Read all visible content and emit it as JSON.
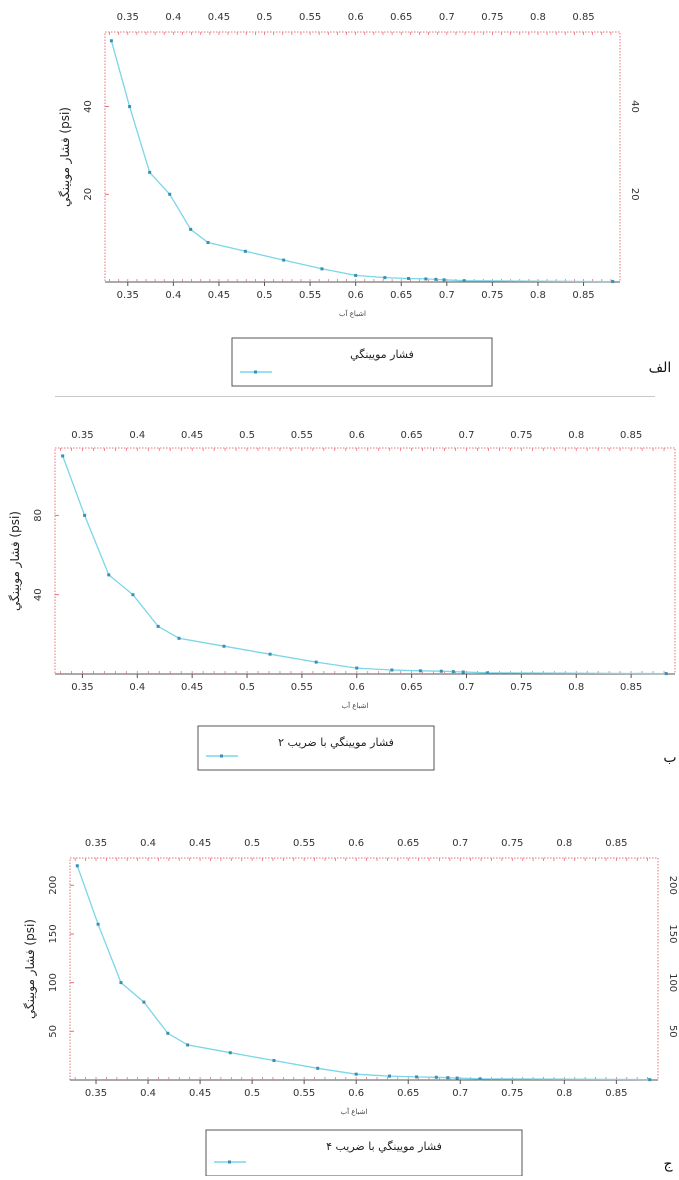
{
  "x_values": [
    0.332,
    0.352,
    0.374,
    0.396,
    0.419,
    0.438,
    0.479,
    0.521,
    0.563,
    0.6,
    0.632,
    0.658,
    0.677,
    0.688,
    0.697,
    0.719,
    0.882
  ],
  "panels": [
    {
      "label": "الف",
      "y_axis_label": "فشار مويينگي (psi)",
      "x_axis_label": "اشباع آب",
      "legend_label": "فشار مويينگي",
      "series_color": "#7ad6e8",
      "frame_color": "#e8707a"
    },
    {
      "label": "ب",
      "y_axis_label": "فشار مويينگي (psi)",
      "x_axis_label": "اشباع آب",
      "legend_label": "فشار مويينگي با ضريب ۲",
      "series_color": "#7ad6e8",
      "frame_color": "#e8707a"
    },
    {
      "label": "ج",
      "y_axis_label": "فشار مويينگي (psi)",
      "x_axis_label": "اشباع آب",
      "legend_label": "فشار مويينگي با ضريب ۴",
      "series_color": "#7ad6e8",
      "frame_color": "#e8707a"
    }
  ],
  "chart_data": [
    {
      "type": "line",
      "x": [
        0.332,
        0.352,
        0.374,
        0.396,
        0.419,
        0.438,
        0.479,
        0.521,
        0.563,
        0.6,
        0.632,
        0.658,
        0.677,
        0.688,
        0.697,
        0.719,
        0.882
      ],
      "series": [
        {
          "name": "فشار مويينگي",
          "values": [
            55,
            40,
            25,
            20,
            12,
            9,
            7,
            5,
            3,
            1.5,
            1.0,
            0.8,
            0.7,
            0.6,
            0.5,
            0.3,
            0.1
          ]
        }
      ],
      "xlim": [
        0.325,
        0.89
      ],
      "ylim": [
        0,
        57
      ],
      "x_ticks": [
        "0.35",
        "0.4",
        "0.45",
        "0.5",
        "0.55",
        "0.6",
        "0.65",
        "0.7",
        "0.75",
        "0.8",
        "0.85"
      ],
      "x_tick_values": [
        0.35,
        0.4,
        0.45,
        0.5,
        0.55,
        0.6,
        0.65,
        0.7,
        0.75,
        0.8,
        0.85
      ],
      "y_ticks_left": [
        "20",
        "40"
      ],
      "y_ticks_right": [
        "20",
        "40"
      ],
      "y_tick_values": [
        20,
        40
      ],
      "xlabel": "اشباع آب",
      "ylabel": "فشار مويينگي (psi)",
      "legend": "bottom-center"
    },
    {
      "type": "line",
      "x": [
        0.332,
        0.352,
        0.374,
        0.396,
        0.419,
        0.438,
        0.479,
        0.521,
        0.563,
        0.6,
        0.632,
        0.658,
        0.677,
        0.688,
        0.697,
        0.719,
        0.882
      ],
      "series": [
        {
          "name": "فشار مويينگي با ضريب ۲",
          "values": [
            110,
            80,
            50,
            40,
            24,
            18,
            14,
            10,
            6,
            3,
            2,
            1.6,
            1.4,
            1.2,
            1.0,
            0.6,
            0.2
          ]
        }
      ],
      "xlim": [
        0.325,
        0.89
      ],
      "ylim": [
        0,
        114
      ],
      "x_ticks": [
        "0.35",
        "0.4",
        "0.45",
        "0.5",
        "0.55",
        "0.6",
        "0.65",
        "0.7",
        "0.75",
        "0.8",
        "0.85"
      ],
      "x_tick_values": [
        0.35,
        0.4,
        0.45,
        0.5,
        0.55,
        0.6,
        0.65,
        0.7,
        0.75,
        0.8,
        0.85
      ],
      "y_ticks_left": [
        "40",
        "80"
      ],
      "y_ticks_right": [],
      "y_tick_values": [
        40,
        80
      ],
      "xlabel": "اشباع آب",
      "ylabel": "فشار مويينگي (psi)",
      "legend": "bottom-center"
    },
    {
      "type": "line",
      "x": [
        0.332,
        0.352,
        0.374,
        0.396,
        0.419,
        0.438,
        0.479,
        0.521,
        0.563,
        0.6,
        0.632,
        0.658,
        0.677,
        0.688,
        0.697,
        0.719,
        0.882
      ],
      "series": [
        {
          "name": "فشار مويينگي با ضريب ۴",
          "values": [
            220,
            160,
            100,
            80,
            48,
            36,
            28,
            20,
            12,
            6,
            4,
            3.2,
            2.8,
            2.4,
            2.0,
            1.2,
            0.4
          ]
        }
      ],
      "xlim": [
        0.325,
        0.89
      ],
      "ylim": [
        0,
        228
      ],
      "x_ticks": [
        "0.35",
        "0.4",
        "0.45",
        "0.5",
        "0.55",
        "0.6",
        "0.65",
        "0.7",
        "0.75",
        "0.8",
        "0.85"
      ],
      "x_tick_values": [
        0.35,
        0.4,
        0.45,
        0.5,
        0.55,
        0.6,
        0.65,
        0.7,
        0.75,
        0.8,
        0.85
      ],
      "y_ticks_left": [
        "50",
        "100",
        "150",
        "200"
      ],
      "y_ticks_right": [
        "50",
        "100",
        "150",
        "200"
      ],
      "y_tick_values": [
        50,
        100,
        150,
        200
      ],
      "xlabel": "اشباع آب",
      "ylabel": "فشار مويينگي (psi)",
      "legend": "bottom-center"
    }
  ]
}
